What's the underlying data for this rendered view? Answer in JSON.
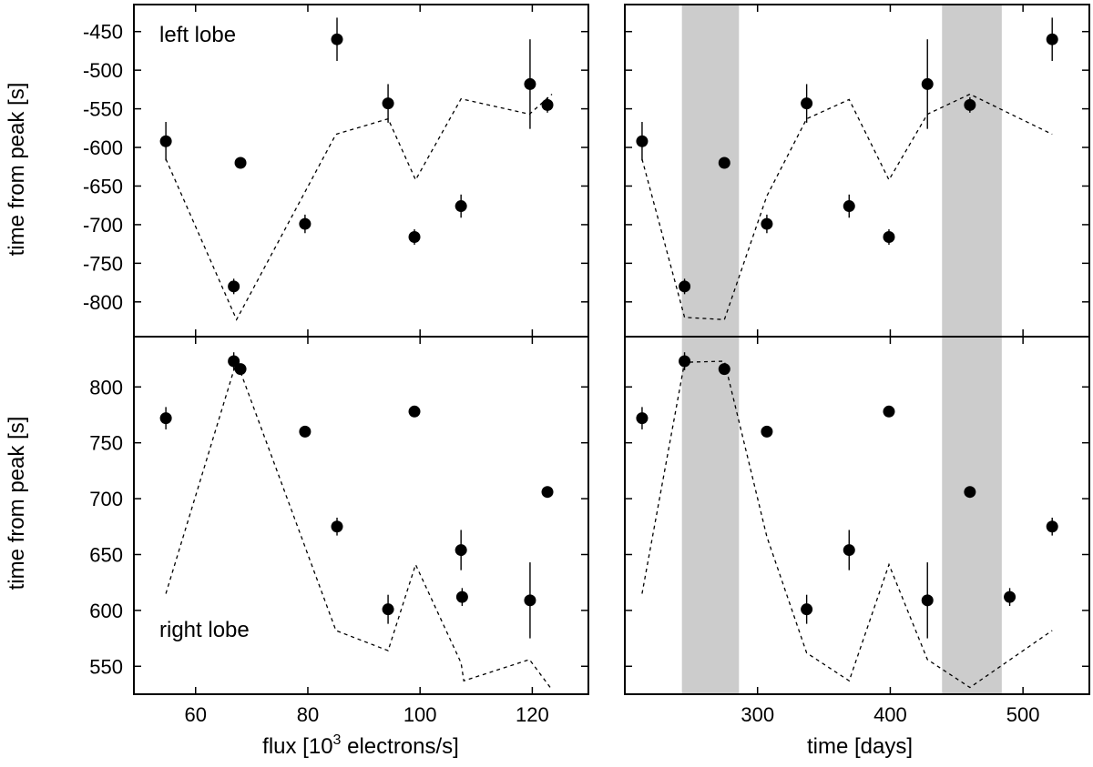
{
  "chart_data": [
    {
      "id": "flux-left",
      "type": "scatter",
      "panel_label": "left lobe",
      "xlabel_prefix": "flux [10",
      "xlabel_sup": "3",
      "xlabel_suffix": " electrons/s]",
      "ylabel": "time from peak [s]",
      "xlim": [
        49,
        130
      ],
      "ylim": [
        -845,
        -415
      ],
      "xticks": [
        60,
        80,
        100,
        120
      ],
      "yticks": [
        -800,
        -750,
        -700,
        -650,
        -600,
        -550,
        -500,
        -450
      ],
      "points": [
        {
          "x": 54.7,
          "y": -592,
          "err": 25
        },
        {
          "x": 66.8,
          "y": -780,
          "err": 10
        },
        {
          "x": 68.0,
          "y": -620,
          "err": 5
        },
        {
          "x": 79.5,
          "y": -699,
          "err": 12
        },
        {
          "x": 85.2,
          "y": -460,
          "err": 28
        },
        {
          "x": 94.3,
          "y": -543,
          "err": 25
        },
        {
          "x": 99.0,
          "y": -716,
          "err": 10
        },
        {
          "x": 107.3,
          "y": -676,
          "err": 15
        },
        {
          "x": 119.6,
          "y": -518,
          "err": 58
        },
        {
          "x": 122.7,
          "y": -545,
          "err": 10
        }
      ],
      "model_line": [
        {
          "x": 54.7,
          "y": -615
        },
        {
          "x": 67.3,
          "y": -823
        },
        {
          "x": 85.0,
          "y": -583
        },
        {
          "x": 94.3,
          "y": -563
        },
        {
          "x": 99.2,
          "y": -642
        },
        {
          "x": 107.3,
          "y": -537
        },
        {
          "x": 119.5,
          "y": -557
        },
        {
          "x": 123.5,
          "y": -531
        }
      ]
    },
    {
      "id": "time-left",
      "type": "scatter",
      "xlabel": "time [days]",
      "xlim": [
        200,
        550
      ],
      "ylim": [
        -845,
        -415
      ],
      "xticks": [
        300,
        400,
        500
      ],
      "shaded_bands": [
        [
          243,
          286
        ],
        [
          439,
          484
        ]
      ],
      "points": [
        {
          "x": 213,
          "y": -592,
          "err": 25
        },
        {
          "x": 245,
          "y": -780,
          "err": 10
        },
        {
          "x": 275,
          "y": -620,
          "err": 5
        },
        {
          "x": 307,
          "y": -699,
          "err": 12
        },
        {
          "x": 337,
          "y": -543,
          "err": 25
        },
        {
          "x": 369,
          "y": -676,
          "err": 15
        },
        {
          "x": 399,
          "y": -716,
          "err": 10
        },
        {
          "x": 428,
          "y": -518,
          "err": 58
        },
        {
          "x": 460,
          "y": -545,
          "err": 10
        },
        {
          "x": 522,
          "y": -460,
          "err": 28
        }
      ],
      "model_line": [
        {
          "x": 213,
          "y": -615
        },
        {
          "x": 245,
          "y": -820
        },
        {
          "x": 275,
          "y": -823
        },
        {
          "x": 307,
          "y": -663
        },
        {
          "x": 337,
          "y": -563
        },
        {
          "x": 369,
          "y": -538
        },
        {
          "x": 399,
          "y": -642
        },
        {
          "x": 428,
          "y": -557
        },
        {
          "x": 460,
          "y": -531
        },
        {
          "x": 522,
          "y": -583
        }
      ]
    },
    {
      "id": "flux-right",
      "type": "scatter",
      "panel_label": "right lobe",
      "xlabel": "",
      "ylabel": "time from peak [s]",
      "xlim": [
        49,
        130
      ],
      "ylim": [
        525,
        845
      ],
      "xticks": [
        60,
        80,
        100,
        120
      ],
      "yticks": [
        550,
        600,
        650,
        700,
        750,
        800
      ],
      "points": [
        {
          "x": 54.7,
          "y": 772,
          "err": 10
        },
        {
          "x": 66.8,
          "y": 823,
          "err": 8
        },
        {
          "x": 68.0,
          "y": 816,
          "err": 5
        },
        {
          "x": 79.5,
          "y": 760,
          "err": 5
        },
        {
          "x": 85.2,
          "y": 675,
          "err": 8
        },
        {
          "x": 94.3,
          "y": 601,
          "err": 13
        },
        {
          "x": 99.0,
          "y": 778,
          "err": 5
        },
        {
          "x": 107.3,
          "y": 654,
          "err": 18
        },
        {
          "x": 107.5,
          "y": 612,
          "err": 8
        },
        {
          "x": 119.6,
          "y": 609,
          "err": 34
        },
        {
          "x": 122.7,
          "y": 706,
          "err": 5
        }
      ],
      "model_line": [
        {
          "x": 54.7,
          "y": 615
        },
        {
          "x": 67.3,
          "y": 823
        },
        {
          "x": 85.0,
          "y": 582
        },
        {
          "x": 94.3,
          "y": 564
        },
        {
          "x": 99.2,
          "y": 641
        },
        {
          "x": 107.3,
          "y": 553
        },
        {
          "x": 107.8,
          "y": 537
        },
        {
          "x": 119.5,
          "y": 556
        },
        {
          "x": 123.5,
          "y": 529
        }
      ]
    },
    {
      "id": "time-right",
      "type": "scatter",
      "xlabel": "time [days]",
      "xlim": [
        200,
        550
      ],
      "ylim": [
        525,
        845
      ],
      "xticks": [
        300,
        400,
        500
      ],
      "shaded_bands": [
        [
          243,
          286
        ],
        [
          439,
          484
        ]
      ],
      "points": [
        {
          "x": 213,
          "y": 772,
          "err": 10
        },
        {
          "x": 245,
          "y": 823,
          "err": 8
        },
        {
          "x": 275,
          "y": 816,
          "err": 5
        },
        {
          "x": 307,
          "y": 760,
          "err": 5
        },
        {
          "x": 337,
          "y": 601,
          "err": 13
        },
        {
          "x": 369,
          "y": 654,
          "err": 18
        },
        {
          "x": 399,
          "y": 778,
          "err": 5
        },
        {
          "x": 428,
          "y": 609,
          "err": 34
        },
        {
          "x": 460,
          "y": 706,
          "err": 5
        },
        {
          "x": 490,
          "y": 612,
          "err": 8
        },
        {
          "x": 522,
          "y": 675,
          "err": 8
        }
      ],
      "model_line": [
        {
          "x": 213,
          "y": 615
        },
        {
          "x": 245,
          "y": 822
        },
        {
          "x": 275,
          "y": 823
        },
        {
          "x": 307,
          "y": 666
        },
        {
          "x": 337,
          "y": 562
        },
        {
          "x": 369,
          "y": 537
        },
        {
          "x": 399,
          "y": 641
        },
        {
          "x": 428,
          "y": 556
        },
        {
          "x": 460,
          "y": 531
        },
        {
          "x": 522,
          "y": 582
        }
      ]
    }
  ],
  "colors": {
    "marker": "#000000",
    "band": "#cccccc",
    "frame": "#000000",
    "model": "#000000"
  }
}
